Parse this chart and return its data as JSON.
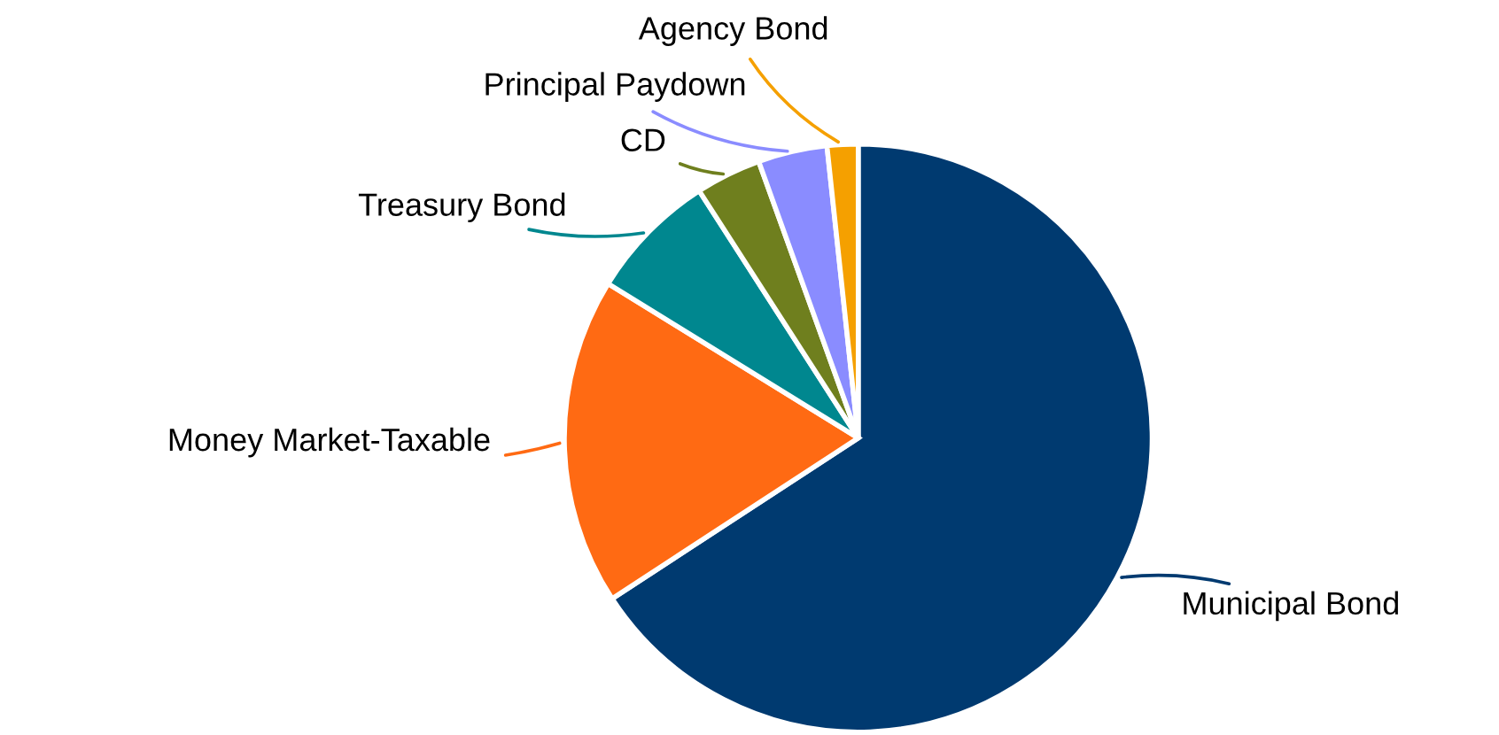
{
  "chart_data": {
    "type": "pie",
    "categories": [
      "Municipal Bond",
      "Money Market-Taxable",
      "Treasury Bond",
      "CD",
      "Principal Paydown",
      "Agency Bond"
    ],
    "values": [
      65.8,
      18.0,
      7.1,
      3.6,
      3.8,
      1.7
    ],
    "colors": [
      "#003a70",
      "#ff6a13",
      "#00878f",
      "#6f7f1e",
      "#8a8cff",
      "#f5a000"
    ],
    "legend": false
  }
}
